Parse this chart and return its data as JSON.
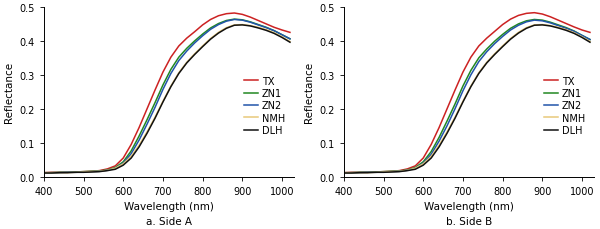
{
  "wavelengths": [
    400,
    420,
    440,
    460,
    480,
    500,
    520,
    540,
    560,
    580,
    600,
    620,
    640,
    660,
    680,
    700,
    720,
    740,
    760,
    780,
    800,
    820,
    840,
    860,
    880,
    900,
    920,
    940,
    960,
    980,
    1000,
    1020
  ],
  "panel_a": {
    "TX": [
      0.012,
      0.013,
      0.013,
      0.013,
      0.014,
      0.015,
      0.016,
      0.018,
      0.023,
      0.032,
      0.055,
      0.095,
      0.145,
      0.2,
      0.255,
      0.308,
      0.352,
      0.385,
      0.408,
      0.427,
      0.447,
      0.463,
      0.474,
      0.48,
      0.482,
      0.478,
      0.47,
      0.46,
      0.45,
      0.44,
      0.432,
      0.425
    ],
    "ZN1": [
      0.012,
      0.012,
      0.013,
      0.013,
      0.014,
      0.015,
      0.016,
      0.017,
      0.02,
      0.027,
      0.044,
      0.076,
      0.12,
      0.168,
      0.218,
      0.27,
      0.316,
      0.352,
      0.378,
      0.4,
      0.42,
      0.438,
      0.451,
      0.46,
      0.464,
      0.462,
      0.456,
      0.448,
      0.44,
      0.43,
      0.418,
      0.406
    ],
    "ZN2": [
      0.011,
      0.012,
      0.012,
      0.013,
      0.013,
      0.014,
      0.015,
      0.016,
      0.019,
      0.025,
      0.04,
      0.068,
      0.108,
      0.155,
      0.204,
      0.257,
      0.304,
      0.342,
      0.37,
      0.394,
      0.415,
      0.434,
      0.448,
      0.458,
      0.463,
      0.461,
      0.455,
      0.447,
      0.439,
      0.43,
      0.418,
      0.406
    ],
    "NMH": [
      0.011,
      0.012,
      0.012,
      0.012,
      0.013,
      0.014,
      0.015,
      0.016,
      0.019,
      0.025,
      0.038,
      0.06,
      0.093,
      0.132,
      0.175,
      0.222,
      0.267,
      0.306,
      0.337,
      0.362,
      0.385,
      0.407,
      0.425,
      0.439,
      0.447,
      0.448,
      0.445,
      0.44,
      0.433,
      0.424,
      0.412,
      0.398
    ],
    "DLH": [
      0.011,
      0.011,
      0.012,
      0.012,
      0.013,
      0.013,
      0.014,
      0.015,
      0.018,
      0.022,
      0.034,
      0.055,
      0.088,
      0.128,
      0.172,
      0.22,
      0.265,
      0.304,
      0.335,
      0.36,
      0.383,
      0.405,
      0.423,
      0.437,
      0.446,
      0.447,
      0.444,
      0.438,
      0.431,
      0.422,
      0.41,
      0.396
    ]
  },
  "panel_b": {
    "TX": [
      0.012,
      0.013,
      0.013,
      0.013,
      0.014,
      0.015,
      0.016,
      0.018,
      0.023,
      0.032,
      0.055,
      0.095,
      0.145,
      0.2,
      0.255,
      0.308,
      0.352,
      0.385,
      0.408,
      0.428,
      0.448,
      0.464,
      0.475,
      0.481,
      0.483,
      0.479,
      0.471,
      0.461,
      0.451,
      0.441,
      0.432,
      0.425
    ],
    "ZN1": [
      0.012,
      0.012,
      0.013,
      0.013,
      0.014,
      0.015,
      0.016,
      0.017,
      0.02,
      0.027,
      0.044,
      0.074,
      0.116,
      0.164,
      0.214,
      0.267,
      0.313,
      0.35,
      0.376,
      0.399,
      0.419,
      0.437,
      0.45,
      0.459,
      0.463,
      0.461,
      0.455,
      0.447,
      0.439,
      0.429,
      0.416,
      0.404
    ],
    "ZN2": [
      0.011,
      0.012,
      0.012,
      0.013,
      0.013,
      0.014,
      0.015,
      0.016,
      0.019,
      0.025,
      0.04,
      0.066,
      0.105,
      0.15,
      0.2,
      0.253,
      0.3,
      0.339,
      0.368,
      0.392,
      0.413,
      0.432,
      0.446,
      0.456,
      0.461,
      0.459,
      0.453,
      0.445,
      0.437,
      0.428,
      0.416,
      0.404
    ],
    "NMH": [
      0.011,
      0.012,
      0.012,
      0.012,
      0.013,
      0.014,
      0.015,
      0.016,
      0.019,
      0.025,
      0.038,
      0.06,
      0.093,
      0.132,
      0.175,
      0.222,
      0.267,
      0.306,
      0.337,
      0.362,
      0.385,
      0.407,
      0.425,
      0.439,
      0.447,
      0.448,
      0.445,
      0.44,
      0.433,
      0.424,
      0.412,
      0.398
    ],
    "DLH": [
      0.011,
      0.011,
      0.012,
      0.012,
      0.013,
      0.013,
      0.014,
      0.015,
      0.018,
      0.022,
      0.034,
      0.055,
      0.088,
      0.128,
      0.172,
      0.22,
      0.265,
      0.304,
      0.335,
      0.36,
      0.383,
      0.405,
      0.423,
      0.437,
      0.446,
      0.447,
      0.444,
      0.438,
      0.431,
      0.422,
      0.41,
      0.396
    ]
  },
  "colors": {
    "TX": "#cc2222",
    "ZN1": "#228822",
    "ZN2": "#2255aa",
    "NMH": "#e8c97a",
    "DLH": "#111111"
  },
  "legend_order": [
    "TX",
    "ZN1",
    "ZN2",
    "NMH",
    "DLH"
  ],
  "xlabel": "Wavelength (nm)",
  "ylabel": "Reflectance",
  "xlim": [
    400,
    1030
  ],
  "ylim": [
    0,
    0.5
  ],
  "yticks": [
    0,
    0.1,
    0.2,
    0.3,
    0.4,
    0.5
  ],
  "xticks": [
    400,
    500,
    600,
    700,
    800,
    900,
    1000
  ],
  "subtitle_a": "a. Side A",
  "subtitle_b": "b. Side B",
  "linewidth": 1.1
}
